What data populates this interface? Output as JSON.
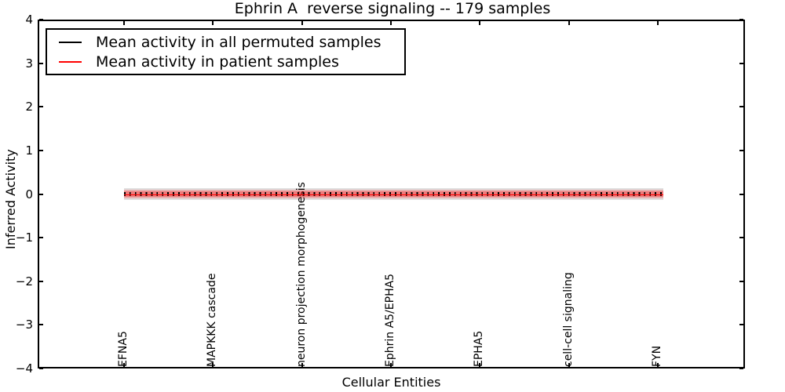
{
  "chart_data": {
    "type": "line",
    "title": "Ephrin A  reverse signaling -- 179 samples",
    "xlabel": "Cellular Entities",
    "ylabel": "Inferred Activity",
    "ylim": [
      -4,
      4
    ],
    "yticks": [
      4,
      3,
      2,
      1,
      0,
      -1,
      -2,
      -3,
      -4
    ],
    "grid": false,
    "legend_position": "upper left",
    "categories": [
      "EFNA5",
      "MAPKKK cascade",
      "neuron projection morphogenesis",
      "Ephrin A5/EPHA5",
      "EPHA5",
      "cell-cell signaling",
      "FYN"
    ],
    "series": [
      {
        "name": "Mean activity in all permuted samples",
        "color": "#000000",
        "line_style": "solid with plus markers",
        "values": [
          0,
          0,
          0,
          0,
          0,
          0,
          0
        ],
        "band_halfwidth": 0.12,
        "band_color": "rgba(0,0,0,0.12)"
      },
      {
        "name": "Mean activity in patient samples",
        "color": "#ff0000",
        "line_style": "solid",
        "values": [
          0,
          0,
          0,
          0,
          0,
          0,
          0
        ],
        "band_halfwidth": 0.09,
        "band_color": "rgba(255,0,0,0.22)",
        "band_inner_color": "rgba(255,0,0,0.30)"
      }
    ]
  }
}
